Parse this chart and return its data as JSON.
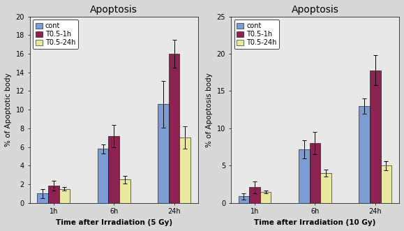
{
  "left_chart": {
    "title": "Apoptosis",
    "xlabel": "Time after Irradiation (5 Gy)",
    "ylabel": "% of Apoptotic body",
    "ylim": [
      0,
      20
    ],
    "yticks": [
      0,
      2,
      4,
      6,
      8,
      10,
      12,
      14,
      16,
      18,
      20
    ],
    "categories": [
      "1h",
      "6h",
      "24h"
    ],
    "series": {
      "cont": [
        1.0,
        5.8,
        10.6
      ],
      "T0.5-1h": [
        1.85,
        7.2,
        16.0
      ],
      "T0.5-24h": [
        1.5,
        2.5,
        7.0
      ]
    },
    "errors": {
      "cont": [
        0.5,
        0.5,
        2.5
      ],
      "T0.5-1h": [
        0.5,
        1.2,
        1.5
      ],
      "T0.5-24h": [
        0.2,
        0.4,
        1.2
      ]
    }
  },
  "right_chart": {
    "title": "Apoptosis",
    "xlabel": "Time after Irradiation (10 Gy)",
    "ylabel": "% of Apoptosis body",
    "ylim": [
      0,
      25
    ],
    "yticks": [
      0,
      5,
      10,
      15,
      20,
      25
    ],
    "categories": [
      "1h",
      "6h",
      "24h"
    ],
    "series": {
      "cont": [
        0.9,
        7.2,
        13.0
      ],
      "T0.5-1h": [
        2.1,
        8.0,
        17.8
      ],
      "T0.5-24h": [
        1.5,
        4.0,
        5.0
      ]
    },
    "errors": {
      "cont": [
        0.4,
        1.2,
        1.0
      ],
      "T0.5-1h": [
        0.8,
        1.5,
        2.0
      ],
      "T0.5-24h": [
        0.2,
        0.5,
        0.6
      ]
    }
  },
  "bar_colors": {
    "cont": "#7b9cd4",
    "T0.5-1h": "#8b2252",
    "T0.5-24h": "#e8e8a0"
  },
  "legend_labels": [
    "cont",
    "T0.5-1h",
    "T0.5-24h"
  ],
  "bar_width": 0.18,
  "title_fontsize": 10,
  "label_fontsize": 7.5,
  "tick_fontsize": 7,
  "legend_fontsize": 7,
  "fig_facecolor": "#d8d8d8",
  "axes_facecolor": "#e8e8e8"
}
